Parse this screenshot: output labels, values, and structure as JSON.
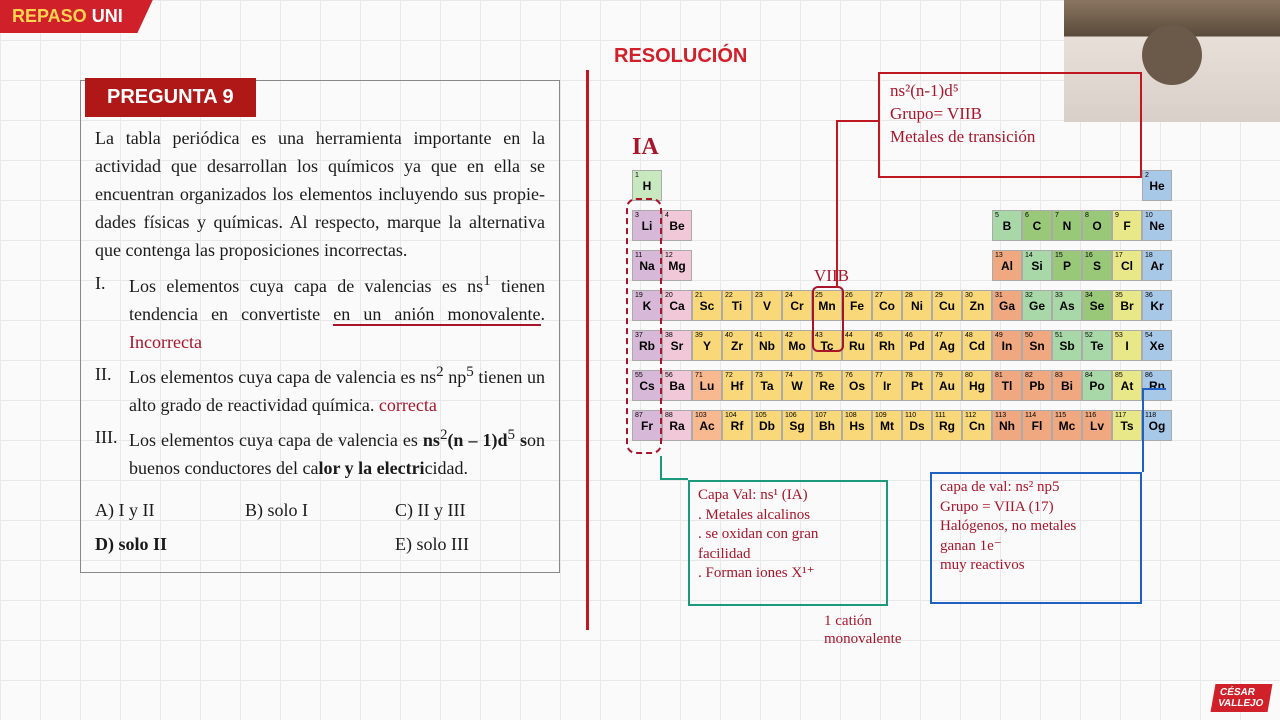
{
  "banner": {
    "a": "REPASO",
    "b": "UNI"
  },
  "resolucion": "RESOLUCIÓN",
  "question": {
    "title": "PREGUNTA 9",
    "intro": "La tabla periódica es una herramienta im­portante en la actividad que desarrollan los químicos ya que en ella se encuentran orga­nizados los elementos incluyendo sus propie­dades físicas y químicas. Al respecto, marque la alternativa que contenga las proposiciones incorrectas.",
    "i1a": "Los elementos cuya capa de valencias es ns",
    "i1b": " tienen tendencia en convertiste ",
    "i1c": "en un anión monovalente",
    "i1note": "Incorrecta",
    "i2a": "Los elementos cuya capa de valencia es ns",
    "i2b": " np",
    "i2c": " tienen un alto grado de reactividad química.",
    "i2note": "correcta",
    "i3a": "Los elementos cuya capa de valencia es ",
    "i3b": "ns",
    "i3c": "(n – 1)d",
    "i3d": " s",
    "i3e": "on buenos conductores del ca­",
    "i3f": "lor y la electri",
    "i3g": "cidad.",
    "opts": {
      "a": "A) I y II",
      "b": "B) solo I",
      "c": "C) II y III",
      "d": "D) solo II",
      "e": "E) solo III"
    }
  },
  "box1": {
    "l1": "ns²(n-1)d⁵",
    "l2": "Grupo= VIIB",
    "l3": "Metales de transición"
  },
  "box2": {
    "l1": "Capa Val:  ns¹ (IA)",
    "l2": ". Metales alcalinos",
    "l3": ". se oxidan con gran",
    "l4": "  facilidad",
    "l5": ". Forman iones X¹⁺"
  },
  "box3": {
    "l1": "capa de val:  ns² np5",
    "l2": "Grupo = VIIA (17)",
    "l3": "Halógenos, no metales",
    "l4": "ganan 1e⁻",
    "l5": "muy reactivos"
  },
  "labels": {
    "ia": "IA",
    "viib": "VIIB",
    "cation": "1 catión\nmonovalente"
  },
  "elements": [
    {
      "z": 1,
      "s": "H",
      "r": 0,
      "c": 0,
      "cl": "c-h"
    },
    {
      "z": 2,
      "s": "He",
      "r": 0,
      "c": 17,
      "cl": "c-ng"
    },
    {
      "z": 3,
      "s": "Li",
      "r": 1,
      "c": 0,
      "cl": "c-al"
    },
    {
      "z": 4,
      "s": "Be",
      "r": 1,
      "c": 1,
      "cl": "c-ae"
    },
    {
      "z": 5,
      "s": "B",
      "r": 1,
      "c": 12,
      "cl": "c-mt"
    },
    {
      "z": 6,
      "s": "C",
      "r": 1,
      "c": 13,
      "cl": "c-nm"
    },
    {
      "z": 7,
      "s": "N",
      "r": 1,
      "c": 14,
      "cl": "c-nm"
    },
    {
      "z": 8,
      "s": "O",
      "r": 1,
      "c": 15,
      "cl": "c-nm"
    },
    {
      "z": 9,
      "s": "F",
      "r": 1,
      "c": 16,
      "cl": "c-hl"
    },
    {
      "z": 10,
      "s": "Ne",
      "r": 1,
      "c": 17,
      "cl": "c-ng"
    },
    {
      "z": 11,
      "s": "Na",
      "r": 2,
      "c": 0,
      "cl": "c-al"
    },
    {
      "z": 12,
      "s": "Mg",
      "r": 2,
      "c": 1,
      "cl": "c-ae"
    },
    {
      "z": 13,
      "s": "Al",
      "r": 2,
      "c": 12,
      "cl": "c-pt"
    },
    {
      "z": 14,
      "s": "Si",
      "r": 2,
      "c": 13,
      "cl": "c-mt"
    },
    {
      "z": 15,
      "s": "P",
      "r": 2,
      "c": 14,
      "cl": "c-nm"
    },
    {
      "z": 16,
      "s": "S",
      "r": 2,
      "c": 15,
      "cl": "c-nm"
    },
    {
      "z": 17,
      "s": "Cl",
      "r": 2,
      "c": 16,
      "cl": "c-hl"
    },
    {
      "z": 18,
      "s": "Ar",
      "r": 2,
      "c": 17,
      "cl": "c-ng"
    },
    {
      "z": 19,
      "s": "K",
      "r": 3,
      "c": 0,
      "cl": "c-al"
    },
    {
      "z": 20,
      "s": "Ca",
      "r": 3,
      "c": 1,
      "cl": "c-ae"
    },
    {
      "z": 21,
      "s": "Sc",
      "r": 3,
      "c": 2,
      "cl": "c-tm"
    },
    {
      "z": 22,
      "s": "Ti",
      "r": 3,
      "c": 3,
      "cl": "c-tm"
    },
    {
      "z": 23,
      "s": "V",
      "r": 3,
      "c": 4,
      "cl": "c-tm"
    },
    {
      "z": 24,
      "s": "Cr",
      "r": 3,
      "c": 5,
      "cl": "c-tm"
    },
    {
      "z": 25,
      "s": "Mn",
      "r": 3,
      "c": 6,
      "cl": "c-tm"
    },
    {
      "z": 26,
      "s": "Fe",
      "r": 3,
      "c": 7,
      "cl": "c-tm"
    },
    {
      "z": 27,
      "s": "Co",
      "r": 3,
      "c": 8,
      "cl": "c-tm"
    },
    {
      "z": 28,
      "s": "Ni",
      "r": 3,
      "c": 9,
      "cl": "c-tm"
    },
    {
      "z": 29,
      "s": "Cu",
      "r": 3,
      "c": 10,
      "cl": "c-tm"
    },
    {
      "z": 30,
      "s": "Zn",
      "r": 3,
      "c": 11,
      "cl": "c-tm"
    },
    {
      "z": 31,
      "s": "Ga",
      "r": 3,
      "c": 12,
      "cl": "c-pt"
    },
    {
      "z": 32,
      "s": "Ge",
      "r": 3,
      "c": 13,
      "cl": "c-mt"
    },
    {
      "z": 33,
      "s": "As",
      "r": 3,
      "c": 14,
      "cl": "c-mt"
    },
    {
      "z": 34,
      "s": "Se",
      "r": 3,
      "c": 15,
      "cl": "c-nm"
    },
    {
      "z": 35,
      "s": "Br",
      "r": 3,
      "c": 16,
      "cl": "c-hl"
    },
    {
      "z": 36,
      "s": "Kr",
      "r": 3,
      "c": 17,
      "cl": "c-ng"
    },
    {
      "z": 37,
      "s": "Rb",
      "r": 4,
      "c": 0,
      "cl": "c-al"
    },
    {
      "z": 38,
      "s": "Sr",
      "r": 4,
      "c": 1,
      "cl": "c-ae"
    },
    {
      "z": 39,
      "s": "Y",
      "r": 4,
      "c": 2,
      "cl": "c-tm"
    },
    {
      "z": 40,
      "s": "Zr",
      "r": 4,
      "c": 3,
      "cl": "c-tm"
    },
    {
      "z": 41,
      "s": "Nb",
      "r": 4,
      "c": 4,
      "cl": "c-tm"
    },
    {
      "z": 42,
      "s": "Mo",
      "r": 4,
      "c": 5,
      "cl": "c-tm"
    },
    {
      "z": 43,
      "s": "Tc",
      "r": 4,
      "c": 6,
      "cl": "c-tm"
    },
    {
      "z": 44,
      "s": "Ru",
      "r": 4,
      "c": 7,
      "cl": "c-tm"
    },
    {
      "z": 45,
      "s": "Rh",
      "r": 4,
      "c": 8,
      "cl": "c-tm"
    },
    {
      "z": 46,
      "s": "Pd",
      "r": 4,
      "c": 9,
      "cl": "c-tm"
    },
    {
      "z": 47,
      "s": "Ag",
      "r": 4,
      "c": 10,
      "cl": "c-tm"
    },
    {
      "z": 48,
      "s": "Cd",
      "r": 4,
      "c": 11,
      "cl": "c-tm"
    },
    {
      "z": 49,
      "s": "In",
      "r": 4,
      "c": 12,
      "cl": "c-pt"
    },
    {
      "z": 50,
      "s": "Sn",
      "r": 4,
      "c": 13,
      "cl": "c-pt"
    },
    {
      "z": 51,
      "s": "Sb",
      "r": 4,
      "c": 14,
      "cl": "c-mt"
    },
    {
      "z": 52,
      "s": "Te",
      "r": 4,
      "c": 15,
      "cl": "c-mt"
    },
    {
      "z": 53,
      "s": "I",
      "r": 4,
      "c": 16,
      "cl": "c-hl"
    },
    {
      "z": 54,
      "s": "Xe",
      "r": 4,
      "c": 17,
      "cl": "c-ng"
    },
    {
      "z": 55,
      "s": "Cs",
      "r": 5,
      "c": 0,
      "cl": "c-al"
    },
    {
      "z": 56,
      "s": "Ba",
      "r": 5,
      "c": 1,
      "cl": "c-ae"
    },
    {
      "z": 71,
      "s": "Lu",
      "r": 5,
      "c": 2,
      "cl": "c-ln"
    },
    {
      "z": 72,
      "s": "Hf",
      "r": 5,
      "c": 3,
      "cl": "c-tm"
    },
    {
      "z": 73,
      "s": "Ta",
      "r": 5,
      "c": 4,
      "cl": "c-tm"
    },
    {
      "z": 74,
      "s": "W",
      "r": 5,
      "c": 5,
      "cl": "c-tm"
    },
    {
      "z": 75,
      "s": "Re",
      "r": 5,
      "c": 6,
      "cl": "c-tm"
    },
    {
      "z": 76,
      "s": "Os",
      "r": 5,
      "c": 7,
      "cl": "c-tm"
    },
    {
      "z": 77,
      "s": "Ir",
      "r": 5,
      "c": 8,
      "cl": "c-tm"
    },
    {
      "z": 78,
      "s": "Pt",
      "r": 5,
      "c": 9,
      "cl": "c-tm"
    },
    {
      "z": 79,
      "s": "Au",
      "r": 5,
      "c": 10,
      "cl": "c-tm"
    },
    {
      "z": 80,
      "s": "Hg",
      "r": 5,
      "c": 11,
      "cl": "c-tm"
    },
    {
      "z": 81,
      "s": "Tl",
      "r": 5,
      "c": 12,
      "cl": "c-pt"
    },
    {
      "z": 82,
      "s": "Pb",
      "r": 5,
      "c": 13,
      "cl": "c-pt"
    },
    {
      "z": 83,
      "s": "Bi",
      "r": 5,
      "c": 14,
      "cl": "c-pt"
    },
    {
      "z": 84,
      "s": "Po",
      "r": 5,
      "c": 15,
      "cl": "c-mt"
    },
    {
      "z": 85,
      "s": "At",
      "r": 5,
      "c": 16,
      "cl": "c-hl"
    },
    {
      "z": 86,
      "s": "Rn",
      "r": 5,
      "c": 17,
      "cl": "c-ng"
    },
    {
      "z": 87,
      "s": "Fr",
      "r": 6,
      "c": 0,
      "cl": "c-al"
    },
    {
      "z": 88,
      "s": "Ra",
      "r": 6,
      "c": 1,
      "cl": "c-ae"
    },
    {
      "z": 103,
      "s": "Ac",
      "r": 6,
      "c": 2,
      "cl": "c-ln"
    },
    {
      "z": 104,
      "s": "Rf",
      "r": 6,
      "c": 3,
      "cl": "c-tm"
    },
    {
      "z": 105,
      "s": "Db",
      "r": 6,
      "c": 4,
      "cl": "c-tm"
    },
    {
      "z": 106,
      "s": "Sg",
      "r": 6,
      "c": 5,
      "cl": "c-tm"
    },
    {
      "z": 107,
      "s": "Bh",
      "r": 6,
      "c": 6,
      "cl": "c-tm"
    },
    {
      "z": 108,
      "s": "Hs",
      "r": 6,
      "c": 7,
      "cl": "c-tm"
    },
    {
      "z": 109,
      "s": "Mt",
      "r": 6,
      "c": 8,
      "cl": "c-tm"
    },
    {
      "z": 110,
      "s": "Ds",
      "r": 6,
      "c": 9,
      "cl": "c-tm"
    },
    {
      "z": 111,
      "s": "Rg",
      "r": 6,
      "c": 10,
      "cl": "c-tm"
    },
    {
      "z": 112,
      "s": "Cn",
      "r": 6,
      "c": 11,
      "cl": "c-tm"
    },
    {
      "z": 113,
      "s": "Nh",
      "r": 6,
      "c": 12,
      "cl": "c-pt"
    },
    {
      "z": 114,
      "s": "Fl",
      "r": 6,
      "c": 13,
      "cl": "c-pt"
    },
    {
      "z": 115,
      "s": "Mc",
      "r": 6,
      "c": 14,
      "cl": "c-pt"
    },
    {
      "z": 116,
      "s": "Lv",
      "r": 6,
      "c": 15,
      "cl": "c-pt"
    },
    {
      "z": 117,
      "s": "Ts",
      "r": 6,
      "c": 16,
      "cl": "c-hl"
    },
    {
      "z": 118,
      "s": "Og",
      "r": 6,
      "c": 17,
      "cl": "c-ng"
    }
  ]
}
